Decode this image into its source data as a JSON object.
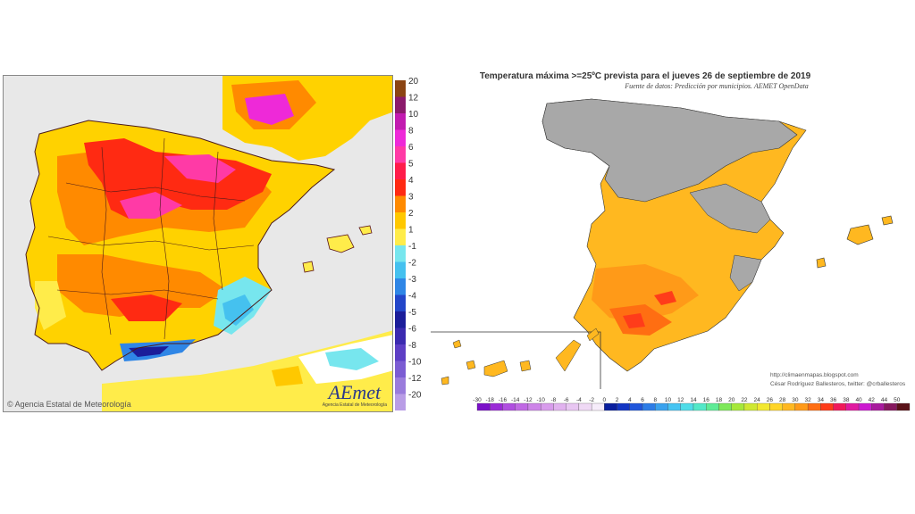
{
  "left_map": {
    "credit": "Agencia Estatal de Meteorología",
    "logo_text": "AEmet",
    "logo_sub": "Agencia Estatal de Meteorología",
    "scale": [
      {
        "label": "20",
        "color": "#8b4513"
      },
      {
        "label": "12",
        "color": "#8b1a6b"
      },
      {
        "label": "10",
        "color": "#c21bb0"
      },
      {
        "label": "8",
        "color": "#ee29d8"
      },
      {
        "label": "6",
        "color": "#ff3aa6"
      },
      {
        "label": "5",
        "color": "#ff1c4a"
      },
      {
        "label": "4",
        "color": "#ff2a12"
      },
      {
        "label": "3",
        "color": "#ff8a00"
      },
      {
        "label": "2",
        "color": "#ffc800"
      },
      {
        "label": "1",
        "color": "#ffec4a"
      },
      {
        "label": "-1",
        "color": "#77e6ee"
      },
      {
        "label": "-2",
        "color": "#45c1ef"
      },
      {
        "label": "-3",
        "color": "#2f86e6"
      },
      {
        "label": "-4",
        "color": "#2346c9"
      },
      {
        "label": "-5",
        "color": "#1b1d9a"
      },
      {
        "label": "-6",
        "color": "#3b2ab0"
      },
      {
        "label": "-8",
        "color": "#5d3ec5"
      },
      {
        "label": "-10",
        "color": "#7b5cd3"
      },
      {
        "label": "-12",
        "color": "#9a7cdc"
      },
      {
        "label": "-20",
        "color": "#b99de6"
      }
    ]
  },
  "right_map": {
    "title": "Temperatura máxima >=25ºC prevista para el jueves 26 de septiembre de 2019",
    "subtitle": "Fuente de datos: Predicción por municipios. AEMET OpenData",
    "blog": "http://climaenmapas.blogspot.com",
    "author": "César Rodríguez Ballesteros, twitter: @crballesteros",
    "colorbar": [
      {
        "label": "-30",
        "color": "#7a10c8"
      },
      {
        "label": "-18",
        "color": "#9a2ad6"
      },
      {
        "label": "-16",
        "color": "#b04ee0"
      },
      {
        "label": "-14",
        "color": "#c069e4"
      },
      {
        "label": "-12",
        "color": "#cd84e8"
      },
      {
        "label": "-10",
        "color": "#d89cec"
      },
      {
        "label": "-8",
        "color": "#e1b2ef"
      },
      {
        "label": "-6",
        "color": "#e8c6f2"
      },
      {
        "label": "-4",
        "color": "#efd9f5"
      },
      {
        "label": "-2",
        "color": "#f6ecfa"
      },
      {
        "label": "0",
        "color": "#0a1f9e"
      },
      {
        "label": "2",
        "color": "#1436c3"
      },
      {
        "label": "4",
        "color": "#2056db"
      },
      {
        "label": "6",
        "color": "#2d7ce6"
      },
      {
        "label": "8",
        "color": "#3aa2ee"
      },
      {
        "label": "10",
        "color": "#46c4f2"
      },
      {
        "label": "12",
        "color": "#4fdce8"
      },
      {
        "label": "14",
        "color": "#53e8c8"
      },
      {
        "label": "16",
        "color": "#5eeb96"
      },
      {
        "label": "18",
        "color": "#7ee85a"
      },
      {
        "label": "20",
        "color": "#a6e83a"
      },
      {
        "label": "22",
        "color": "#cfe832"
      },
      {
        "label": "24",
        "color": "#f2e830"
      },
      {
        "label": "26",
        "color": "#ffd528"
      },
      {
        "label": "28",
        "color": "#ffb820"
      },
      {
        "label": "30",
        "color": "#ff9a18"
      },
      {
        "label": "32",
        "color": "#ff6e12"
      },
      {
        "label": "34",
        "color": "#ff3c1a"
      },
      {
        "label": "36",
        "color": "#f01a5a"
      },
      {
        "label": "38",
        "color": "#e01aa0"
      },
      {
        "label": "40",
        "color": "#cc1ad0"
      },
      {
        "label": "42",
        "color": "#a81a9e"
      },
      {
        "label": "44",
        "color": "#86185e"
      },
      {
        "label": "50",
        "color": "#5a1218"
      }
    ]
  }
}
